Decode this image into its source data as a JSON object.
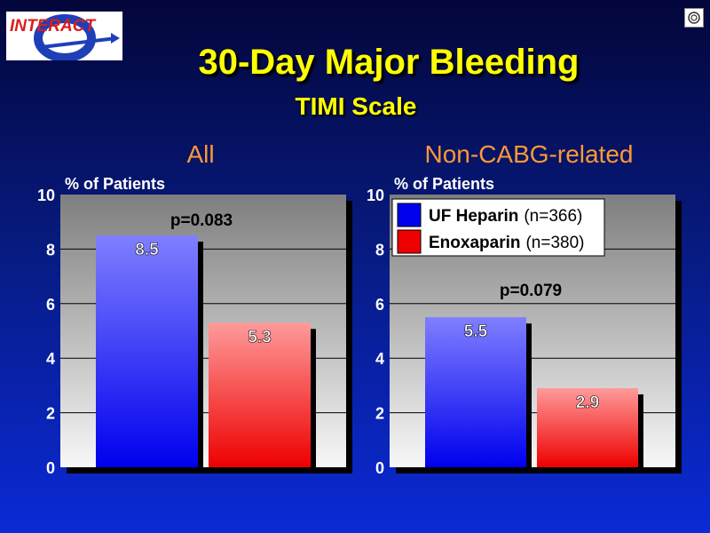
{
  "slide": {
    "title": "30-Day Major Bleeding",
    "subtitle": "TIMI Scale"
  },
  "logo": {
    "text": "INTERACT"
  },
  "colors": {
    "heparin_top": "#7f7fff",
    "heparin_bottom": "#0000ee",
    "enox_top": "#ff9a9a",
    "enox_bottom": "#ee0000",
    "panel_title": "#ff9933",
    "axis_text": "#ffffff"
  },
  "chart_data": [
    {
      "type": "bar",
      "title": "All",
      "ylabel": "% of Patients",
      "ylim": [
        0,
        10
      ],
      "yticks": [
        "0",
        "2",
        "4",
        "6",
        "8",
        "10"
      ],
      "grid": true,
      "annotation": "p=0.083",
      "series": [
        {
          "name": "UF Heparin",
          "values": [
            8.5
          ],
          "labels": [
            "8.5"
          ]
        },
        {
          "name": "Enoxaparin",
          "values": [
            5.3
          ],
          "labels": [
            "5.3"
          ]
        }
      ]
    },
    {
      "type": "bar",
      "title": "Non-CABG-related",
      "ylabel": "% of Patients",
      "ylim": [
        0,
        10
      ],
      "yticks": [
        "0",
        "2",
        "4",
        "6",
        "8",
        "10"
      ],
      "grid": true,
      "annotation": "p=0.079",
      "legend_placement": "top-left",
      "legend": [
        {
          "name": "UF Heparin",
          "n": "(n=366)"
        },
        {
          "name": "Enoxaparin",
          "n": "(n=380)"
        }
      ],
      "series": [
        {
          "name": "UF Heparin",
          "values": [
            5.5
          ],
          "labels": [
            "5.5"
          ]
        },
        {
          "name": "Enoxaparin",
          "values": [
            2.9
          ],
          "labels": [
            "2.9"
          ]
        }
      ]
    }
  ]
}
